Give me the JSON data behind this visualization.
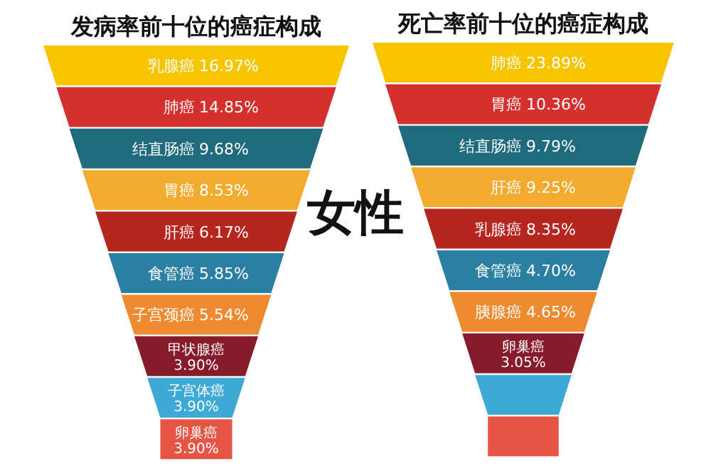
{
  "chart_data": [
    {
      "type": "other",
      "title": "发病率前十位的癌症构成",
      "categories": [
        "乳腺癌",
        "肺癌",
        "结直肠癌",
        "胃癌",
        "肝癌",
        "食管癌",
        "子宫颈癌",
        "甲状腺癌",
        "子宫体癌",
        "卵巢癌"
      ],
      "values": [
        16.97,
        14.85,
        9.68,
        8.53,
        6.17,
        5.85,
        5.54,
        3.9,
        3.9,
        3.9
      ],
      "value_labels": [
        "16.97%",
        "14.85%",
        "9.68%",
        "8.53%",
        "6.17%",
        "5.85%",
        "5.54%",
        "3.90%",
        "3.90%",
        "3.90%"
      ],
      "colors": [
        "#f6c500",
        "#d3302e",
        "#1f6a7c",
        "#f2ab2e",
        "#b5261f",
        "#2b7fa3",
        "#ee8a2f",
        "#861c2b",
        "#3daad6",
        "#e45546"
      ]
    },
    {
      "type": "other",
      "title": "女性"
    },
    {
      "type": "other",
      "title": "死亡率前十位的癌症构成",
      "categories": [
        "肺癌",
        "胃癌",
        "结直肠癌",
        "肝癌",
        "乳腺癌",
        "食管癌",
        "胰腺癌",
        "卵巢癌",
        null,
        null
      ],
      "values": [
        23.89,
        10.36,
        9.79,
        9.25,
        8.35,
        4.7,
        4.65,
        3.05,
        null,
        null
      ],
      "value_labels": [
        "23.89%",
        "10.36%",
        "9.79%",
        "9.25%",
        "8.35%",
        "4.70%",
        "4.65%",
        "3.05%",
        null,
        null
      ],
      "colors": [
        "#f6c500",
        "#d3302e",
        "#1f6a7c",
        "#f2ab2e",
        "#b5261f",
        "#2b7fa3",
        "#ee8a2f",
        "#861c2b",
        "#3daad6",
        "#e45546"
      ]
    }
  ]
}
